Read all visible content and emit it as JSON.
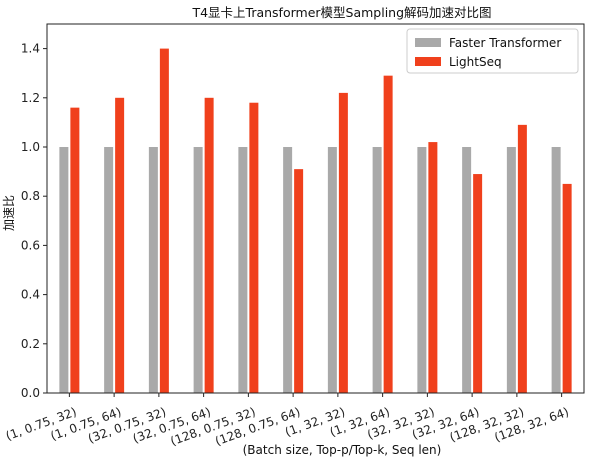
{
  "chart_data": {
    "type": "bar",
    "title": "T4显卡上Transformer模型Sampling解码加速对比图",
    "xlabel": "(Batch size, Top-p/Top-k, Seq len)",
    "ylabel": "加速比",
    "ylim": [
      0,
      1.5
    ],
    "yticks": [
      0.0,
      0.2,
      0.4,
      0.6,
      0.8,
      1.0,
      1.2,
      1.4
    ],
    "grid": false,
    "legend_position": "top-right",
    "categories": [
      "(1, 0.75, 32)",
      "(1, 0.75, 64)",
      "(32, 0.75, 32)",
      "(32, 0.75, 64)",
      "(128, 0.75, 32)",
      "(128, 0.75, 64)",
      "(1, 32, 32)",
      "(1, 32, 64)",
      "(32, 32, 32)",
      "(32, 32, 64)",
      "(128, 32, 32)",
      "(128, 32, 64)"
    ],
    "series": [
      {
        "name": "Faster Transformer",
        "color": "#a9a9a9",
        "values": [
          1.0,
          1.0,
          1.0,
          1.0,
          1.0,
          1.0,
          1.0,
          1.0,
          1.0,
          1.0,
          1.0,
          1.0
        ]
      },
      {
        "name": "LightSeq",
        "color": "#f0401c",
        "values": [
          1.16,
          1.2,
          1.4,
          1.2,
          1.18,
          0.91,
          1.22,
          1.29,
          1.02,
          0.89,
          1.09,
          0.85
        ]
      }
    ]
  }
}
